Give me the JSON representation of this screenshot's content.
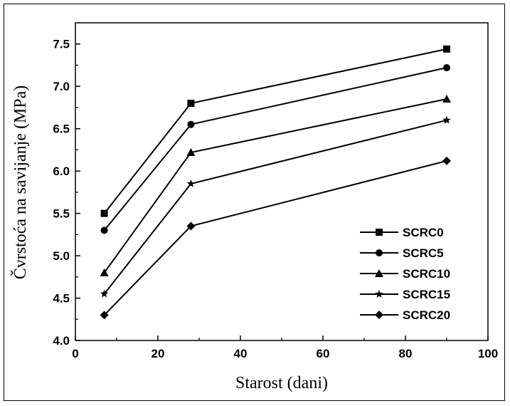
{
  "chart_data": {
    "type": "line",
    "xlabel": "Starost (dani)",
    "ylabel": "Čvrstoća na savijanje (MPa)",
    "xlim": [
      0,
      100
    ],
    "ylim": [
      4.0,
      7.75
    ],
    "xticks": [
      0,
      20,
      40,
      60,
      80,
      100
    ],
    "yticks": [
      4.0,
      4.5,
      5.0,
      5.5,
      6.0,
      6.5,
      7.0,
      7.5
    ],
    "x": [
      7,
      28,
      90
    ],
    "series": [
      {
        "name": "SCRC0",
        "marker": "square",
        "values": [
          5.5,
          6.8,
          7.44
        ]
      },
      {
        "name": "SCRC5",
        "marker": "circle",
        "values": [
          5.3,
          6.55,
          7.22
        ]
      },
      {
        "name": "SCRC10",
        "marker": "triangle",
        "values": [
          4.8,
          6.22,
          6.85
        ]
      },
      {
        "name": "SCRC15",
        "marker": "star",
        "values": [
          4.55,
          5.85,
          6.6
        ]
      },
      {
        "name": "SCRC20",
        "marker": "diamond",
        "values": [
          4.3,
          5.35,
          6.12
        ]
      }
    ],
    "legend_position": "bottom-right",
    "grid": false
  }
}
